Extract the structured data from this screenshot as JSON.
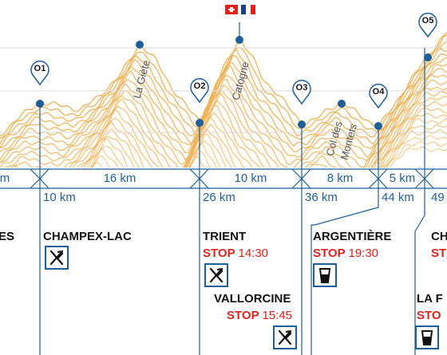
{
  "segments_km": [
    "m",
    "16 km",
    "10 km",
    "8 km",
    "5 km"
  ],
  "distances": [
    "10 km",
    "26 km",
    "36 km",
    "44 km",
    "49"
  ],
  "checkpoints": [
    "O1",
    "O2",
    "O3",
    "O4",
    "O5"
  ],
  "peaks": [
    "La Giète",
    "Catogne",
    "Col des\nMontets"
  ],
  "towns": {
    "es": "ES",
    "champex": "CHAMPEX-LAC",
    "trient": "TRIENT",
    "argentiere": "ARGENTIÈRE",
    "vallorcine": "VALLORCINE",
    "ch": "CH",
    "lafl": "LA F"
  },
  "stops": {
    "label": "STOP",
    "trient_time": "14:30",
    "argentiere_time": "19:30",
    "vallorcine_time": "15:45",
    "right_partial": "ST",
    "right_partial2": "STO"
  },
  "icons": [
    "fork-knife-icon",
    "fork-knife-icon",
    "cup-icon",
    "fork-knife-icon",
    "cup-icon"
  ],
  "colors": {
    "profile": "#f0b154",
    "route": "#1f5f99",
    "stop": "#e2211c"
  }
}
